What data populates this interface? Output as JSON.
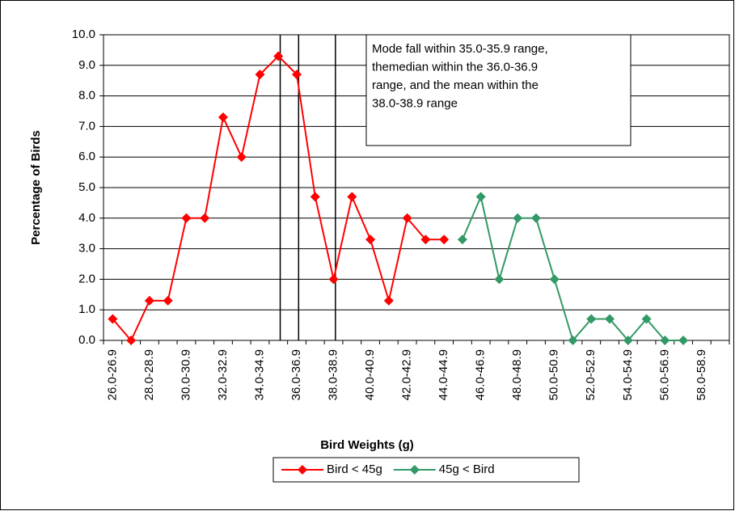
{
  "chart_data": {
    "type": "line",
    "x_label": "Bird Weights (g)",
    "y_label": "Percentage of Birds",
    "categories": [
      "26.0-26.9",
      null,
      "28.0-28.9",
      null,
      "30.0-30.9",
      null,
      "32.0-32.9",
      null,
      "34.0-34.9",
      null,
      "36.0-36.9",
      null,
      "38.0-38.9",
      null,
      "40.0-40.9",
      null,
      "42.0-42.9",
      null,
      "44.0-44.9",
      null,
      "46.0-46.9",
      null,
      "48.0-48.9",
      null,
      "50.0-50.9",
      null,
      "52.0-52.9",
      null,
      "54.0-54.9",
      null,
      "56.0-56.9",
      null,
      "58.0-58.9",
      null
    ],
    "series": [
      {
        "name": "Bird < 45g",
        "color": "#ff0000",
        "values": [
          0.7,
          0,
          1.3,
          1.3,
          4.0,
          4.0,
          7.3,
          6.0,
          8.7,
          9.3,
          8.7,
          4.7,
          2.0,
          4.7,
          3.3,
          1.3,
          4.0,
          3.3,
          3.3,
          null,
          null,
          null,
          null,
          null,
          null,
          null,
          null,
          null,
          null,
          null,
          null,
          null,
          null,
          null
        ]
      },
      {
        "name": "45g < Bird",
        "color": "#339966",
        "values": [
          null,
          null,
          null,
          null,
          null,
          null,
          null,
          null,
          null,
          null,
          null,
          null,
          null,
          null,
          null,
          null,
          null,
          null,
          null,
          3.3,
          4.7,
          2.0,
          4.0,
          4.0,
          2.0,
          0,
          0.7,
          0.7,
          0,
          0.7,
          0,
          0,
          null,
          null
        ]
      }
    ],
    "ylim": [
      0,
      10
    ],
    "yticks": [
      {
        "value": 0,
        "label": "0.0"
      },
      {
        "value": 1,
        "label": "1.0"
      },
      {
        "value": 2,
        "label": "2.0"
      },
      {
        "value": 3,
        "label": "3.0"
      },
      {
        "value": 4,
        "label": "4.0"
      },
      {
        "value": 5,
        "label": "5.0"
      },
      {
        "value": 6,
        "label": "6.0"
      },
      {
        "value": 7,
        "label": "7.0"
      },
      {
        "value": 8,
        "label": "8.0"
      },
      {
        "value": 9,
        "label": "9.0"
      },
      {
        "value": 10,
        "label": "10.0"
      }
    ],
    "grid": true,
    "vlines": [
      9.1,
      10.1,
      12.1
    ],
    "annotation": [
      "Mode fall within  35.0-35.9 range,",
      "themedian  within the 36.0-36.9",
      "range, and the mean within the",
      "38.0-38.9 range"
    ],
    "legend": "bottom"
  }
}
